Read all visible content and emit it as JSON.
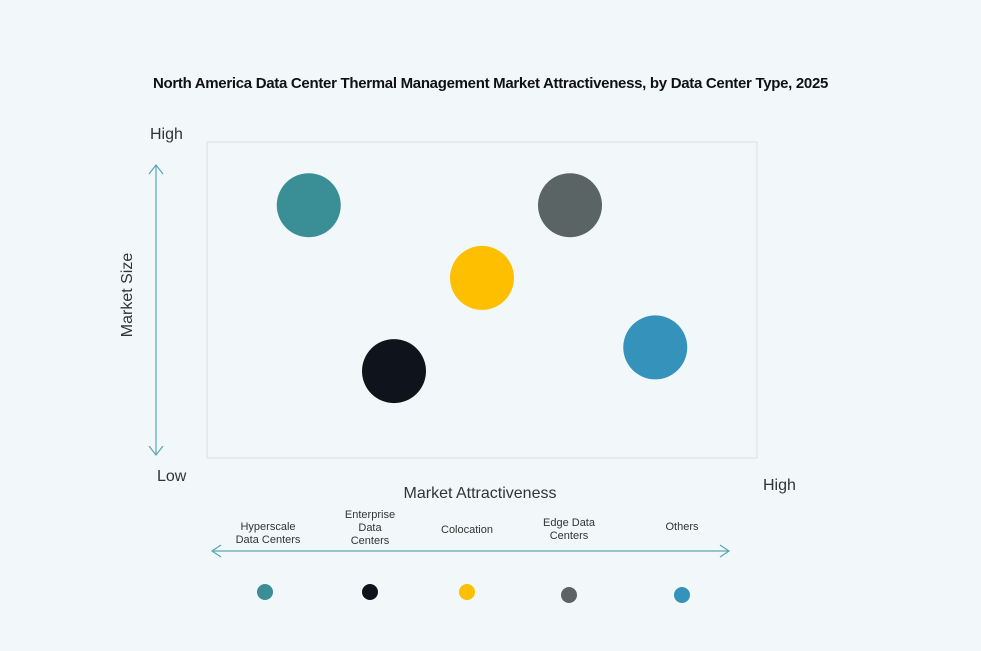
{
  "chart_data": {
    "type": "scatter",
    "title": "North America Data Center Thermal Management Market Attractiveness,  by Data Center Type, 2025",
    "xlabel": "Market Attractiveness",
    "ylabel": "Market Size",
    "x_ticks": {
      "low": "",
      "high": "High"
    },
    "y_ticks": {
      "low": "Low",
      "high": "High"
    },
    "xlim": [
      0,
      1
    ],
    "ylim": [
      0,
      1
    ],
    "grid": false,
    "legend_placement": "bottom",
    "points": [
      {
        "name": "Hyperscale Data Centers",
        "x": 0.185,
        "y": 0.8,
        "color": "#3a8f96"
      },
      {
        "name": "Enterprise Data Centers",
        "x": 0.34,
        "y": 0.275,
        "color": "#0f141c"
      },
      {
        "name": "Colocation",
        "x": 0.5,
        "y": 0.57,
        "color": "#fdbf00"
      },
      {
        "name": "Edge Data Centers",
        "x": 0.66,
        "y": 0.8,
        "color": "#5a6464"
      },
      {
        "name": "Others",
        "x": 0.815,
        "y": 0.35,
        "color": "#3593bb"
      }
    ],
    "legend": [
      {
        "line1": "Hyperscale",
        "line2": "Data Centers",
        "line3": ""
      },
      {
        "line1": "Enterprise",
        "line2": "Data",
        "line3": "Centers"
      },
      {
        "line1": "Colocation",
        "line2": "",
        "line3": ""
      },
      {
        "line1": "Edge Data",
        "line2": "Centers",
        "line3": ""
      },
      {
        "line1": "Others",
        "line2": "",
        "line3": ""
      }
    ],
    "axis_color": "#5aa6b5"
  }
}
